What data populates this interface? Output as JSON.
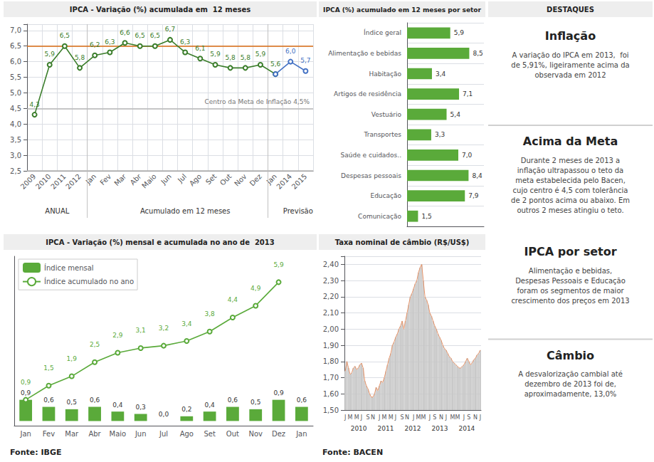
{
  "chart_data": [
    {
      "type": "line",
      "title": "IPCA - Variação (%) acumulada em  12 meses",
      "categories": [
        "2009",
        "2010",
        "2011",
        "2012",
        "Jan",
        "Fev",
        "Mar",
        "Abr",
        "Maio",
        "Jun",
        "Jul",
        "Ago",
        "Set",
        "Out",
        "Nov",
        "Dez",
        "Jan",
        "2014",
        "2015"
      ],
      "series": [
        {
          "color": "#3A7D2A",
          "marker": "circle",
          "values": [
            4.3,
            5.9,
            6.5,
            5.8,
            6.2,
            6.3,
            6.6,
            6.5,
            6.5,
            6.7,
            6.3,
            6.1,
            5.9,
            5.8,
            5.8,
            5.9,
            5.6,
            null,
            null
          ],
          "value_labels": [
            "4,3",
            "5,9",
            "6,5",
            "5,8",
            "6,2",
            "6,3",
            "6,6",
            "6,5",
            "6,5",
            "6,7",
            "6,3",
            "6,1",
            "5,9",
            "5,8",
            "5,8",
            "5,9",
            "5,6",
            null,
            null
          ]
        },
        {
          "color": "#4472C4",
          "marker": "circle",
          "values": [
            null,
            null,
            null,
            null,
            null,
            null,
            null,
            null,
            null,
            null,
            null,
            null,
            null,
            null,
            null,
            null,
            5.6,
            6.0,
            5.7
          ],
          "value_labels": [
            null,
            null,
            null,
            null,
            null,
            null,
            null,
            null,
            null,
            null,
            null,
            null,
            null,
            null,
            null,
            null,
            null,
            "6,0",
            "5,7"
          ]
        }
      ],
      "ylim": [
        2.5,
        7.2
      ],
      "yticks": [
        {
          "value": 2.5,
          "label": "2,5"
        },
        {
          "value": 3.0,
          "label": "3,0"
        },
        {
          "value": 3.5,
          "label": "3,5"
        },
        {
          "value": 4.0,
          "label": "4,0"
        },
        {
          "value": 4.5,
          "label": "4,5"
        },
        {
          "value": 5.0,
          "label": "5,0"
        },
        {
          "value": 5.5,
          "label": "5,5"
        },
        {
          "value": 6.0,
          "label": "6,0"
        },
        {
          "value": 6.5,
          "label": "6,5"
        },
        {
          "value": 7.0,
          "label": "7,0"
        }
      ],
      "grid": true,
      "data_labels": true,
      "reference_lines": [
        {
          "value": 6.5,
          "color": "#D96A10"
        },
        {
          "value": 2.5,
          "color": "#B8B8B8"
        },
        {
          "value": 4.5,
          "color": "#B8B8B8",
          "label": "Centro da Meta de Inflação 4,5%"
        }
      ],
      "annotations": [
        "ANUAL",
        "Acumulado em 12 meses",
        "Previsão"
      ]
    },
    {
      "type": "bar",
      "orientation": "horizontal",
      "title": "IPCA (%) acumulado em 12 meses por setor",
      "categories": [
        "Índice geral",
        "Alimentação e bebidas",
        "Habitação",
        "Artigos de residência",
        "Vestuário",
        "Transportes",
        "Saúde e cuidados..",
        "Despesas pessoais",
        "Educação",
        "Comunicação"
      ],
      "values": [
        5.9,
        8.5,
        3.4,
        7.1,
        5.4,
        3.3,
        7.0,
        8.4,
        7.9,
        1.5
      ],
      "value_labels": [
        "5,9",
        "8,5",
        "3,4",
        "7,1",
        "5,4",
        "3,3",
        "7,0",
        "8,4",
        "7,9",
        "1,5"
      ],
      "color": "#5AAA3A",
      "xlim": [
        0,
        10.5
      ],
      "tick_labels": "y",
      "grid": "y",
      "data_labels": true
    },
    {
      "type": "text",
      "title": "DESTAQUES",
      "annotations": [
        {
          "title": "Inflação",
          "text": "A variação do IPCA em 2013,  foi\nde 5,91%, ligeiramente acima da\nobservada em 2012"
        },
        {
          "title": "Acima da Meta",
          "text": "Durante 2 meses de 2013 a\ninflação ultrapassou o teto da\nmeta estabelecida pelo Bacen,\ncujo centro é 4,5 com tolerância\nde 2 pontos acima ou abaixo. Em\noutros 2 meses atingiu o teto."
        }
      ]
    },
    {
      "type": "bar",
      "title": "IPCA - Variação (%) mensal e acumulada no ano de  2013",
      "categories": [
        "Jan",
        "Fev",
        "Mar",
        "Abr",
        "Maio",
        "Jun",
        "Jul",
        "Ago",
        "Set",
        "Out",
        "Nov",
        "Dez",
        "Jan"
      ],
      "series": [
        {
          "name": "Índice mensal",
          "type": "bar",
          "color": "#5AAA3A",
          "values": [
            0.9,
            0.6,
            0.5,
            0.6,
            0.4,
            0.3,
            0.0,
            0.2,
            0.4,
            0.6,
            0.5,
            0.9,
            0.6
          ],
          "value_labels": [
            "0,9",
            "0,6",
            "0,5",
            "0,6",
            "0,4",
            "0,3",
            "0,0",
            "0,2",
            "0,4",
            "0,6",
            "0,5",
            "0,9",
            "0,6"
          ]
        },
        {
          "name": "Índice acumulado no ano",
          "type": "line",
          "color": "#5AAA3A",
          "marker": "circle",
          "values": [
            0.9,
            1.5,
            1.9,
            2.5,
            2.9,
            3.1,
            3.2,
            3.4,
            3.8,
            4.4,
            4.9,
            5.9,
            null
          ],
          "value_labels": [
            "0,9",
            "1,5",
            "1,9",
            "2,5",
            "2,9",
            "3,1",
            "3,2",
            "3,4",
            "3,8",
            "4,4",
            "4,9",
            "5,9",
            null
          ]
        }
      ],
      "ylim": [
        -0.2,
        7.0
      ],
      "tick_labels": "x",
      "legend": "upper left",
      "grid": false,
      "data_labels": true
    },
    {
      "type": "bar",
      "title": "Taxa nominal de câmbio (R$/US$)",
      "categories": [
        "J",
        null,
        null,
        "M",
        null,
        null,
        null,
        "M",
        null,
        null,
        "J",
        null,
        null,
        null,
        "S",
        null,
        null,
        "N",
        null,
        null,
        null,
        "J",
        null,
        null,
        "M",
        null,
        null,
        null,
        "M",
        null,
        null,
        "J",
        null,
        null,
        null,
        "S",
        null,
        null,
        "N",
        null,
        null,
        null,
        "J",
        null,
        null,
        "M",
        null,
        null,
        "M",
        null,
        null,
        null,
        "J",
        null,
        null,
        "S",
        null,
        null,
        null,
        "N",
        null,
        null,
        "J",
        null,
        null,
        null,
        "M",
        null,
        null,
        "M",
        null,
        null,
        null,
        "J",
        null,
        null,
        "S",
        null,
        null,
        null,
        "N",
        null,
        null,
        "J"
      ],
      "series": [
        {
          "type": "bar",
          "color": "#C8C8C8",
          "values": [
            1.74,
            1.8,
            1.76,
            1.72,
            1.73,
            1.76,
            1.77,
            1.75,
            1.76,
            1.78,
            1.79,
            1.76,
            1.68,
            1.65,
            1.63,
            1.6,
            1.58,
            1.58,
            1.6,
            1.64,
            1.62,
            1.65,
            1.68,
            1.67,
            1.7,
            1.74,
            1.78,
            1.82,
            1.85,
            1.9,
            1.92,
            1.95,
            1.97,
            2.0,
            2.02,
            2.05,
            2.0,
            2.05,
            2.1,
            2.15,
            2.2,
            2.22,
            2.25,
            2.28,
            2.3,
            2.35,
            2.38,
            2.4,
            2.3,
            2.2,
            2.18,
            2.15,
            2.1,
            2.08,
            2.05,
            2.02,
            2.0,
            1.97,
            1.95,
            1.93,
            1.9,
            1.88,
            1.87,
            1.85,
            1.83,
            1.82,
            1.8,
            1.79,
            1.78,
            1.77,
            1.76,
            1.76,
            1.77,
            1.78,
            1.8,
            1.82,
            1.8,
            1.78,
            1.79,
            1.81,
            1.82,
            1.84,
            1.85,
            1.87
          ]
        },
        {
          "type": "line",
          "color": "#E8956A",
          "marker": "none",
          "values": [
            1.74,
            1.8,
            1.76,
            1.72,
            1.73,
            1.76,
            1.77,
            1.75,
            1.76,
            1.78,
            1.79,
            1.76,
            1.68,
            1.65,
            1.63,
            1.6,
            1.58,
            1.58,
            1.6,
            1.64,
            1.62,
            1.65,
            1.68,
            1.67,
            1.7,
            1.74,
            1.78,
            1.82,
            1.85,
            1.9,
            1.92,
            1.95,
            1.97,
            2.0,
            2.02,
            2.05,
            2.0,
            2.05,
            2.1,
            2.15,
            2.2,
            2.22,
            2.25,
            2.28,
            2.3,
            2.35,
            2.38,
            2.4,
            2.3,
            2.2,
            2.18,
            2.15,
            2.1,
            2.08,
            2.05,
            2.02,
            2.0,
            1.97,
            1.95,
            1.93,
            1.9,
            1.88,
            1.87,
            1.85,
            1.83,
            1.82,
            1.8,
            1.79,
            1.78,
            1.77,
            1.76,
            1.76,
            1.77,
            1.78,
            1.8,
            1.82,
            1.8,
            1.78,
            1.79,
            1.81,
            1.82,
            1.84,
            1.85,
            1.87
          ]
        }
      ],
      "ylim": [
        1.5,
        2.45
      ],
      "yticks": [
        {
          "value": 1.5,
          "label": "1,50"
        },
        {
          "value": 1.6,
          "label": "1,60"
        },
        {
          "value": 1.7,
          "label": "1,70"
        },
        {
          "value": 1.8,
          "label": "1,80"
        },
        {
          "value": 1.9,
          "label": "1,90"
        },
        {
          "value": 2.0,
          "label": "2,00"
        },
        {
          "value": 2.1,
          "label": "2,10"
        },
        {
          "value": 2.2,
          "label": "2,20"
        },
        {
          "value": 2.3,
          "label": "2,30"
        },
        {
          "value": 2.4,
          "label": "2,40"
        }
      ],
      "grid": "y",
      "annotations": [
        "2010",
        "2011",
        "2012",
        "2013",
        "2014"
      ]
    },
    {
      "type": "text",
      "annotations": [
        {
          "title": "IPCA por setor",
          "text": "Alimentação e bebidas,\nDespesas Pessoais e Educação\nforam os segmentos de maior\ncrescimento dos preços em 2013"
        },
        {
          "title": "Câmbio",
          "text": "A desvalorização cambial até\ndezembro de 2013 foi de,\naproximadamente, 13,0%"
        }
      ]
    },
    {
      "type": "text",
      "annotations": [
        "Fonte: IBGE",
        "Fonte: BACEN"
      ]
    }
  ]
}
